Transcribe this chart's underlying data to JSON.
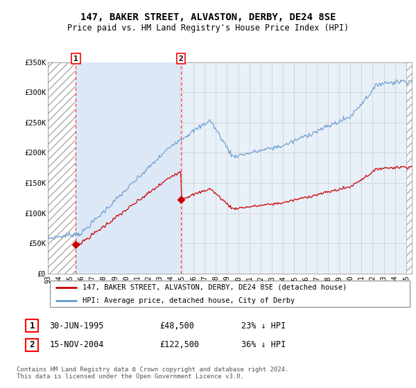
{
  "title": "147, BAKER STREET, ALVASTON, DERBY, DE24 8SE",
  "subtitle": "Price paid vs. HM Land Registry's House Price Index (HPI)",
  "ylim": [
    0,
    350000
  ],
  "yticks": [
    0,
    50000,
    100000,
    150000,
    200000,
    250000,
    300000,
    350000
  ],
  "ytick_labels": [
    "£0",
    "£50K",
    "£100K",
    "£150K",
    "£200K",
    "£250K",
    "£300K",
    "£350K"
  ],
  "xmin": 1993.0,
  "xmax": 2025.5,
  "sale1_date": 1995.5,
  "sale1_price": 48500,
  "sale2_date": 2004.88,
  "sale2_price": 122500,
  "red_line_color": "#cc0000",
  "blue_line_color": "#6699cc",
  "blue_fill_color": "#dce8f5",
  "hatch_color": "#cccccc",
  "grid_color": "#cccccc",
  "bg_color": "#e8f0f8",
  "legend_label1": "147, BAKER STREET, ALVASTON, DERBY, DE24 8SE (detached house)",
  "legend_label2": "HPI: Average price, detached house, City of Derby",
  "annot1_num": "1",
  "annot1_date": "30-JUN-1995",
  "annot1_price": "£48,500",
  "annot1_hpi": "23% ↓ HPI",
  "annot2_num": "2",
  "annot2_date": "15-NOV-2004",
  "annot2_price": "£122,500",
  "annot2_hpi": "36% ↓ HPI",
  "footer": "Contains HM Land Registry data © Crown copyright and database right 2024.\nThis data is licensed under the Open Government Licence v3.0.",
  "xtick_years": [
    "93",
    "94",
    "95",
    "96",
    "97",
    "98",
    "99",
    "00",
    "01",
    "02",
    "03",
    "04",
    "05",
    "06",
    "07",
    "08",
    "09",
    "10",
    "11",
    "12",
    "13",
    "14",
    "15",
    "16",
    "17",
    "18",
    "19",
    "20",
    "21",
    "22",
    "23",
    "24",
    "25"
  ],
  "xtick_positions": [
    1993,
    1994,
    1995,
    1996,
    1997,
    1998,
    1999,
    2000,
    2001,
    2002,
    2003,
    2004,
    2005,
    2006,
    2007,
    2008,
    2009,
    2010,
    2011,
    2012,
    2013,
    2014,
    2015,
    2016,
    2017,
    2018,
    2019,
    2020,
    2021,
    2022,
    2023,
    2024,
    2025
  ]
}
